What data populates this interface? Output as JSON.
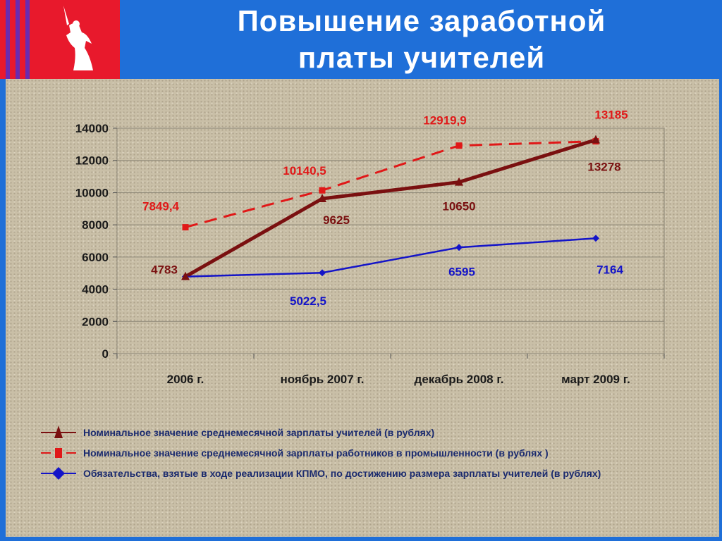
{
  "header": {
    "title": "Повышение заработной платы учителей",
    "emblem_icon": "volgograd-motherland-statue-icon"
  },
  "colors": {
    "header_bg": "#1f6fd8",
    "emblem_bg": "#e8192c",
    "teachers_series": "#7a1010",
    "industry_series": "#e01818",
    "commitments_series": "#1414c8"
  },
  "chart_data": {
    "type": "line",
    "categories": [
      "2006 г.",
      "ноябрь 2007 г.",
      "декабрь 2008 г.",
      "март 2009 г."
    ],
    "ylim": [
      0,
      14000
    ],
    "yticks": [
      "0",
      "2000",
      "4000",
      "6000",
      "8000",
      "10000",
      "12000",
      "14000"
    ],
    "grid": true,
    "series": [
      {
        "name": "Номинальное значение среднемесячной зарплаты учителей (в рублях)",
        "values": [
          4783,
          9625,
          10650,
          13278
        ],
        "labels": [
          "4783",
          "9625",
          "10650",
          "13278"
        ],
        "color": "#7a1010",
        "style": "solid",
        "marker": "triangle"
      },
      {
        "name": "Номинальное значение среднемесячной зарплаты работников в промышленности (в рублях )",
        "values": [
          7849.4,
          10140.5,
          12919.9,
          13185
        ],
        "labels": [
          "7849,4",
          "10140,5",
          "12919,9",
          "13185"
        ],
        "color": "#e01818",
        "style": "dashed",
        "marker": "square"
      },
      {
        "name": "Обязательства, взятые в ходе реализации КПМО, по достижению размера зарплаты учителей (в рублях)",
        "values": [
          4783,
          5022.5,
          6595,
          7164
        ],
        "labels": [
          "",
          "5022,5",
          "6595",
          "7164"
        ],
        "color": "#1414c8",
        "style": "solid",
        "marker": "diamond"
      }
    ],
    "legend": [
      {
        "label": "Номинальное значение среднемесячной зарплаты учителей (в рублях)"
      },
      {
        "label": "Номинальное значение среднемесячной зарплаты работников в промышленности (в рублях )"
      },
      {
        "label": "Обязательства, взятые в ходе реализации КПМО, по достижению размера зарплаты учителей (в рублях)"
      }
    ],
    "legend_position": "bottom"
  }
}
